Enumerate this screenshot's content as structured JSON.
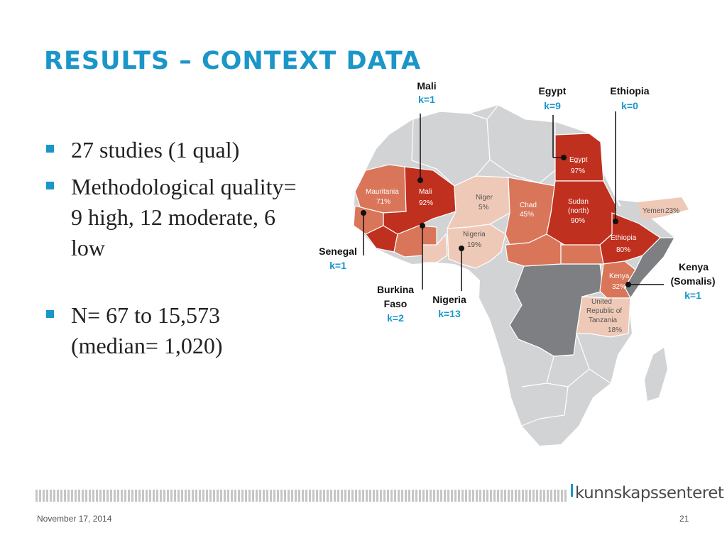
{
  "slide": {
    "title": "RESULTS – CONTEXT DATA",
    "bullets": [
      "27 studies (1 qual)",
      "Methodological quality= 9 high, 12 moderate, 6 low",
      "N= 67 to 15,573 (median= 1,020)"
    ]
  },
  "map": {
    "colors": {
      "dark": "#c0301f",
      "medium": "#d9765a",
      "light": "#efc9b7",
      "grey": "#d2d3d5",
      "darkgrey": "#7d7f82"
    },
    "countries": [
      {
        "name": "Mauritania",
        "value": "71%",
        "shade": "medium"
      },
      {
        "name": "Mali",
        "value": "92%",
        "shade": "dark"
      },
      {
        "name": "Niger",
        "value": "5%",
        "shade": "light"
      },
      {
        "name": "Chad",
        "value": "45%",
        "shade": "medium"
      },
      {
        "name": "Nigeria",
        "value": "19%",
        "shade": "light"
      },
      {
        "name": "Egypt",
        "value": "97%",
        "shade": "dark"
      },
      {
        "name": "Sudan (north)",
        "name_lines": [
          "Sudan",
          "(north)"
        ],
        "value": "90%",
        "shade": "dark"
      },
      {
        "name": "Ethiopia",
        "value": "80%",
        "shade": "dark"
      },
      {
        "name": "Yemen",
        "value": "23%",
        "shade": "light"
      },
      {
        "name": "Kenya",
        "value": "32%",
        "shade": "medium"
      },
      {
        "name": "United Republic of Tanzania",
        "name_lines": [
          "United",
          "Republic of",
          "Tanzania"
        ],
        "value": "18%",
        "shade": "light"
      }
    ],
    "callouts": [
      {
        "name_lines": [
          "Mali"
        ],
        "k": "k=1"
      },
      {
        "name_lines": [
          "Egypt"
        ],
        "k": "k=9"
      },
      {
        "name_lines": [
          "Ethiopia"
        ],
        "k": "k=0"
      },
      {
        "name_lines": [
          "Senegal"
        ],
        "k": "k=1"
      },
      {
        "name_lines": [
          "Burkina",
          "Faso"
        ],
        "k": "k=2"
      },
      {
        "name_lines": [
          "Nigeria"
        ],
        "k": "k=13"
      },
      {
        "name_lines": [
          "Kenya",
          "(Somalis)"
        ],
        "k": "k=1"
      }
    ]
  },
  "footer": {
    "logo": "kunnskapssenteret",
    "date": "November 17, 2014",
    "page": "21"
  }
}
